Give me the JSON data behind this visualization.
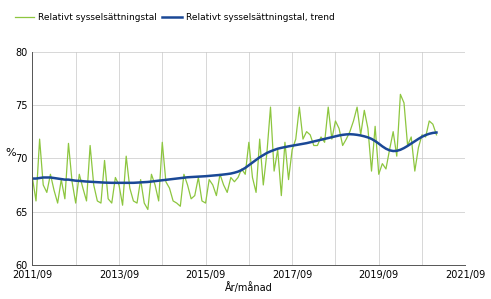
{
  "ylabel": "%",
  "xlabel": "År/månad",
  "legend1": "Relativt sysselsättningstal",
  "legend2": "Relativt sysselsättningstal, trend",
  "ylim": [
    60,
    80
  ],
  "yticks": [
    60,
    65,
    70,
    75,
    80
  ],
  "xtick_labels": [
    "2011/09",
    "2013/09",
    "2015/09",
    "2017/09",
    "2019/09",
    "2021/09"
  ],
  "xtick_positions": [
    0,
    24,
    48,
    72,
    96,
    120
  ],
  "xgrid_positions": [
    0,
    12,
    24,
    36,
    48,
    60,
    72,
    84,
    96,
    108,
    120
  ],
  "line_color": "#8dc63f",
  "trend_color": "#1a4896",
  "background_color": "#ffffff",
  "grid_color": "#c8c8c8",
  "raw_values": [
    68.2,
    66.0,
    71.8,
    67.5,
    66.8,
    68.5,
    67.0,
    65.8,
    68.0,
    66.2,
    71.4,
    67.8,
    65.8,
    68.5,
    67.2,
    66.0,
    71.2,
    67.5,
    66.0,
    65.8,
    69.8,
    66.2,
    65.8,
    68.2,
    67.5,
    65.6,
    70.2,
    67.2,
    66.0,
    65.8,
    68.0,
    65.8,
    65.2,
    68.5,
    67.5,
    66.0,
    71.5,
    67.8,
    67.2,
    66.0,
    65.8,
    65.5,
    68.5,
    67.5,
    66.2,
    66.5,
    68.2,
    66.0,
    65.8,
    68.0,
    67.5,
    66.5,
    68.5,
    67.5,
    66.8,
    68.2,
    67.8,
    68.2,
    69.0,
    68.5,
    71.5,
    68.2,
    66.8,
    71.8,
    67.5,
    70.5,
    74.8,
    68.8,
    70.8,
    66.5,
    71.5,
    68.0,
    70.8,
    71.8,
    74.8,
    71.8,
    72.5,
    72.2,
    71.2,
    71.2,
    72.0,
    71.5,
    74.8,
    71.8,
    73.5,
    72.8,
    71.2,
    71.8,
    72.5,
    73.5,
    74.8,
    72.2,
    74.5,
    72.8,
    68.8,
    73.0,
    68.5,
    69.5,
    69.0,
    70.8,
    72.5,
    70.2,
    76.0,
    75.2,
    71.2,
    72.0,
    68.8,
    71.0,
    72.2,
    72.0,
    73.5,
    73.2,
    72.2
  ],
  "trend_values": [
    68.1,
    68.1,
    68.15,
    68.2,
    68.2,
    68.2,
    68.15,
    68.1,
    68.05,
    68.0,
    68.0,
    67.95,
    67.9,
    67.88,
    67.85,
    67.82,
    67.8,
    67.78,
    67.76,
    67.74,
    67.72,
    67.71,
    67.7,
    67.7,
    67.7,
    67.7,
    67.7,
    67.7,
    67.7,
    67.72,
    67.74,
    67.76,
    67.78,
    67.82,
    67.86,
    67.9,
    67.94,
    67.98,
    68.02,
    68.06,
    68.1,
    68.14,
    68.18,
    68.22,
    68.24,
    68.26,
    68.28,
    68.3,
    68.32,
    68.35,
    68.38,
    68.41,
    68.44,
    68.48,
    68.52,
    68.57,
    68.65,
    68.75,
    68.9,
    69.1,
    69.35,
    69.6,
    69.85,
    70.1,
    70.3,
    70.5,
    70.65,
    70.78,
    70.9,
    70.98,
    71.05,
    71.12,
    71.18,
    71.24,
    71.3,
    71.36,
    71.42,
    71.5,
    71.58,
    71.66,
    71.74,
    71.82,
    71.9,
    71.98,
    72.06,
    72.14,
    72.2,
    72.24,
    72.26,
    72.24,
    72.2,
    72.14,
    72.06,
    71.96,
    71.82,
    71.62,
    71.38,
    71.12,
    70.9,
    70.75,
    70.68,
    70.7,
    70.8,
    70.96,
    71.16,
    71.38,
    71.6,
    71.82,
    72.02,
    72.18,
    72.3,
    72.38,
    72.42
  ]
}
